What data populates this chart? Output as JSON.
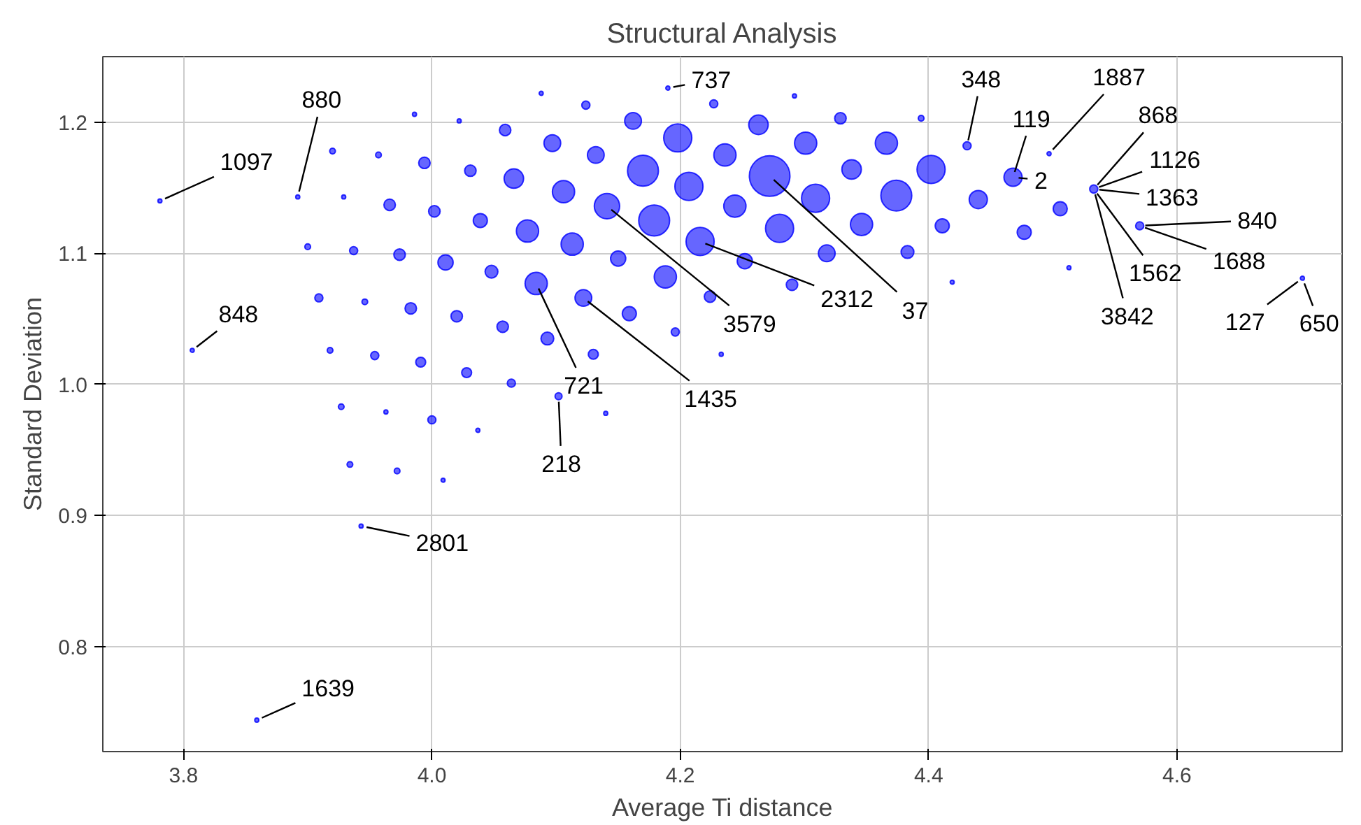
{
  "chart_data": {
    "type": "bubble",
    "title": "Structural Analysis",
    "xlabel": "Average Ti distance",
    "ylabel": "Standard Deviation",
    "xlim": [
      3.735,
      4.733
    ],
    "ylim": [
      0.72,
      1.25
    ],
    "xticks": [
      3.8,
      {
        "value": 4.0,
        "label": "4.0"
      },
      4.2,
      4.4,
      4.6
    ],
    "yticks": [
      0.8,
      0.9,
      {
        "value": 1.0,
        "label": "1.0"
      },
      1.1,
      1.2
    ],
    "grid": true,
    "marker": "circle",
    "series": [
      {
        "color": "#0000ff",
        "x": [
          3.781,
          3.892,
          3.807,
          3.986,
          4.022,
          4.059,
          3.92,
          3.957,
          3.994,
          4.031,
          3.929,
          3.966,
          4.002,
          4.039,
          3.9,
          3.937,
          3.974,
          4.011,
          4.048,
          3.909,
          3.946,
          3.983,
          4.02,
          4.057,
          3.918,
          3.954,
          3.991,
          4.028,
          4.064,
          3.927,
          3.963,
          4.0,
          4.037,
          3.934,
          3.972,
          4.009,
          3.943,
          3.859,
          4.088,
          4.19,
          4.124,
          4.227,
          4.292,
          4.162,
          4.263,
          4.329,
          4.394,
          4.097,
          4.198,
          4.301,
          4.366,
          4.132,
          4.236,
          4.338,
          4.066,
          4.17,
          4.272,
          4.402,
          4.106,
          4.207,
          4.309,
          4.374,
          4.141,
          4.244,
          4.077,
          4.179,
          4.28,
          4.346,
          4.411,
          4.113,
          4.216,
          4.15,
          4.252,
          4.318,
          4.383,
          4.188,
          4.29,
          4.419,
          4.084,
          4.122,
          4.224,
          4.159,
          4.093,
          4.196,
          4.13,
          4.233,
          4.102,
          4.14,
          4.431,
          4.468,
          4.497,
          4.44,
          4.506,
          4.477,
          4.533,
          4.57,
          4.513,
          4.701
        ],
        "values": [
          1.14,
          1.143,
          1.026,
          1.206,
          1.201,
          1.194,
          1.178,
          1.175,
          1.169,
          1.163,
          1.143,
          1.137,
          1.132,
          1.125,
          1.105,
          1.102,
          1.099,
          1.093,
          1.086,
          1.066,
          1.063,
          1.058,
          1.052,
          1.044,
          1.026,
          1.022,
          1.017,
          1.009,
          1.001,
          0.983,
          0.979,
          0.973,
          0.965,
          0.939,
          0.934,
          0.927,
          0.892,
          0.744,
          1.222,
          1.226,
          1.213,
          1.214,
          1.22,
          1.201,
          1.198,
          1.203,
          1.203,
          1.184,
          1.188,
          1.184,
          1.184,
          1.175,
          1.175,
          1.164,
          1.157,
          1.163,
          1.159,
          1.164,
          1.147,
          1.151,
          1.142,
          1.144,
          1.136,
          1.136,
          1.117,
          1.125,
          1.119,
          1.122,
          1.121,
          1.107,
          1.109,
          1.096,
          1.094,
          1.1,
          1.101,
          1.082,
          1.076,
          1.078,
          1.077,
          1.066,
          1.067,
          1.054,
          1.035,
          1.04,
          1.023,
          1.023,
          0.991,
          0.978,
          1.182,
          1.158,
          1.176,
          1.141,
          1.134,
          1.116,
          1.149,
          1.121,
          1.089,
          1.081
        ],
        "sizes": [
          0.01,
          0.01,
          0.01,
          0.01,
          0.01,
          0.08,
          0.02,
          0.02,
          0.08,
          0.08,
          0.01,
          0.08,
          0.08,
          0.12,
          0.02,
          0.04,
          0.08,
          0.14,
          0.1,
          0.04,
          0.02,
          0.08,
          0.08,
          0.08,
          0.02,
          0.04,
          0.06,
          0.06,
          0.04,
          0.02,
          0.01,
          0.04,
          0.01,
          0.02,
          0.02,
          0.01,
          0.01,
          0.01,
          0.01,
          0.01,
          0.04,
          0.04,
          0.01,
          0.17,
          0.23,
          0.08,
          0.02,
          0.17,
          0.48,
          0.3,
          0.3,
          0.17,
          0.3,
          0.23,
          0.23,
          0.58,
          1,
          0.48,
          0.3,
          0.48,
          0.48,
          0.58,
          0.39,
          0.3,
          0.3,
          0.58,
          0.48,
          0.3,
          0.12,
          0.3,
          0.48,
          0.14,
          0.14,
          0.17,
          0.1,
          0.3,
          0.08,
          0.01,
          0.3,
          0.17,
          0.08,
          0.12,
          0.1,
          0.04,
          0.06,
          0.01,
          0.03,
          0.01,
          0.04,
          0.2,
          0.01,
          0.2,
          0.12,
          0.12,
          0.04,
          0.04,
          0.01,
          0.01
        ]
      }
    ],
    "annotations": [
      {
        "text": "1097",
        "x": 3.781,
        "y": 1.14
      },
      {
        "text": "880",
        "x": 3.892,
        "y": 1.143
      },
      {
        "text": "848",
        "x": 3.807,
        "y": 1.026
      },
      {
        "text": "737",
        "x": 4.19,
        "y": 1.226
      },
      {
        "text": "348",
        "x": 4.431,
        "y": 1.182
      },
      {
        "text": "119",
        "x": 4.468,
        "y": 1.158
      },
      {
        "text": "2",
        "x": 4.468,
        "y": 1.158
      },
      {
        "text": "1887",
        "x": 4.497,
        "y": 1.176
      },
      {
        "text": "868",
        "x": 4.533,
        "y": 1.149
      },
      {
        "text": "1126",
        "x": 4.533,
        "y": 1.149
      },
      {
        "text": "1363",
        "x": 4.533,
        "y": 1.149
      },
      {
        "text": "840",
        "x": 4.57,
        "y": 1.121
      },
      {
        "text": "1688",
        "x": 4.57,
        "y": 1.121
      },
      {
        "text": "1562",
        "x": 4.533,
        "y": 1.149
      },
      {
        "text": "3842",
        "x": 4.533,
        "y": 1.149
      },
      {
        "text": "127",
        "x": 4.701,
        "y": 1.081
      },
      {
        "text": "650",
        "x": 4.701,
        "y": 1.081
      },
      {
        "text": "3579",
        "x": 4.141,
        "y": 1.136
      },
      {
        "text": "2312",
        "x": 4.216,
        "y": 1.109
      },
      {
        "text": "37",
        "x": 4.272,
        "y": 1.159
      },
      {
        "text": "721",
        "x": 4.084,
        "y": 1.077
      },
      {
        "text": "1435",
        "x": 4.122,
        "y": 1.066
      },
      {
        "text": "218",
        "x": 4.102,
        "y": 0.991
      },
      {
        "text": "2801",
        "x": 3.943,
        "y": 0.892
      },
      {
        "text": "1639",
        "x": 3.859,
        "y": 0.744
      }
    ]
  }
}
